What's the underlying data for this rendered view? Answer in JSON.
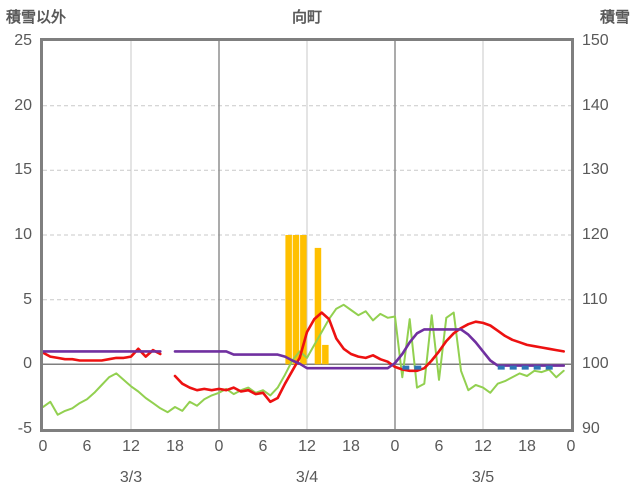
{
  "header": {
    "left_axis_title": "積雪以外",
    "chart_title": "向町",
    "right_axis_title": "積雪"
  },
  "chart_data": {
    "type": "line",
    "title": "向町",
    "left_axis": {
      "label": "積雪以外",
      "min": -5,
      "max": 25,
      "ticks": [
        25,
        20,
        15,
        10,
        5,
        0,
        -5
      ]
    },
    "right_axis": {
      "label": "積雪",
      "min": 90,
      "max": 150,
      "ticks": [
        150,
        140,
        130,
        120,
        110,
        100,
        90
      ]
    },
    "x_axis": {
      "total_hours": 72,
      "tick_interval_hours": 6,
      "tick_labels": [
        "0",
        "6",
        "12",
        "18",
        "0",
        "6",
        "12",
        "18",
        "0",
        "6",
        "12",
        "18",
        "0"
      ],
      "day_labels": [
        {
          "label": "3/3",
          "hour": 12
        },
        {
          "label": "3/4",
          "hour": 36
        },
        {
          "label": "3/5",
          "hour": 60
        }
      ],
      "gridlines_minor_hours": [
        12,
        36,
        60
      ],
      "gridlines_major_hours": [
        24,
        48
      ]
    },
    "grid": {
      "minor_color": "#c9c9c9",
      "major_color": "#8f8f8f",
      "zero_line_color": "#7f7f7f",
      "border_color": "#7f7f7f",
      "text_color": "#595959"
    },
    "series": [
      {
        "name": "green-line",
        "color": "#92d050",
        "axis": "left",
        "width": 2,
        "values": [
          -3.3,
          -2.9,
          -3.9,
          -3.6,
          -3.4,
          -3.0,
          -2.7,
          -2.2,
          -1.6,
          -1.0,
          -0.7,
          -1.2,
          -1.7,
          -2.1,
          -2.6,
          -3.0,
          -3.4,
          -3.7,
          -3.3,
          -3.6,
          -2.9,
          -3.2,
          -2.7,
          -2.4,
          -2.2,
          -1.9,
          -2.3,
          -2.0,
          -1.8,
          -2.2,
          -2.0,
          -2.4,
          -1.8,
          -0.8,
          0.3,
          1.0,
          0.5,
          1.5,
          2.5,
          3.5,
          4.3,
          4.6,
          4.2,
          3.8,
          4.1,
          3.4,
          3.9,
          3.6,
          3.7,
          -1.0,
          3.5,
          -1.8,
          -1.5,
          3.8,
          -1.2,
          3.6,
          4.0,
          -0.5,
          -2.0,
          -1.6,
          -1.8,
          -2.2,
          -1.5,
          -1.3,
          -1.0,
          -0.7,
          -0.9,
          -0.5,
          -0.6,
          -0.4,
          -1.0,
          -0.5
        ]
      },
      {
        "name": "red-line",
        "color": "#ed1111",
        "axis": "left",
        "width": 2.6,
        "values": [
          0.9,
          0.6,
          0.5,
          0.4,
          0.4,
          0.3,
          0.3,
          0.3,
          0.3,
          0.4,
          0.5,
          0.5,
          0.6,
          1.2,
          0.6,
          1.1,
          0.8,
          null,
          -0.9,
          -1.5,
          -1.8,
          -2.0,
          -1.9,
          -2.0,
          -1.9,
          -2.0,
          -1.8,
          -2.1,
          -2.0,
          -2.3,
          -2.2,
          -2.9,
          -2.6,
          -1.5,
          -0.5,
          0.5,
          2.5,
          3.5,
          4.0,
          3.5,
          2.0,
          1.2,
          0.8,
          0.6,
          0.5,
          0.7,
          0.4,
          0.2,
          -0.2,
          -0.4,
          -0.5,
          -0.5,
          -0.3,
          0.3,
          1.0,
          1.8,
          2.4,
          2.8,
          3.1,
          3.3,
          3.2,
          3.0,
          2.6,
          2.2,
          1.9,
          1.7,
          1.5,
          1.4,
          1.3,
          1.2,
          1.1,
          1.0
        ]
      },
      {
        "name": "purple-line",
        "color": "#7030a0",
        "axis": "right",
        "width": 2.6,
        "values": [
          102,
          102,
          102,
          102,
          102,
          102,
          102,
          102,
          102,
          102,
          102,
          102,
          102,
          102,
          102,
          102,
          102,
          null,
          102,
          102,
          102,
          102,
          102,
          102,
          102,
          102,
          101.5,
          101.5,
          101.5,
          101.5,
          101.5,
          101.5,
          101.5,
          101.2,
          100.6,
          100.1,
          99.4,
          99.4,
          99.4,
          99.4,
          99.4,
          99.4,
          99.4,
          99.4,
          99.4,
          99.4,
          99.4,
          99.4,
          100.2,
          101.6,
          103.4,
          104.8,
          105.4,
          105.4,
          105.4,
          105.4,
          105.4,
          105.4,
          104.6,
          103.4,
          102,
          100.6,
          99.8,
          99.8,
          99.8,
          99.8,
          99.8,
          99.8,
          99.8,
          99.8,
          99.8,
          99.8
        ]
      }
    ],
    "bars": {
      "name": "orange-bars",
      "color": "#ffc000",
      "axis": "left",
      "points": [
        {
          "hour": 33,
          "value": 10
        },
        {
          "hour": 34,
          "value": 10
        },
        {
          "hour": 35,
          "value": 10
        },
        {
          "hour": 37,
          "value": 9
        },
        {
          "hour": 38,
          "value": 1.5
        }
      ]
    },
    "dashed_segments": {
      "name": "blue-dashes",
      "color": "#2e75b6",
      "axis": "right",
      "value": 99.5,
      "width": 4,
      "ranges": [
        [
          49,
          52
        ],
        [
          62,
          70
        ]
      ]
    }
  }
}
